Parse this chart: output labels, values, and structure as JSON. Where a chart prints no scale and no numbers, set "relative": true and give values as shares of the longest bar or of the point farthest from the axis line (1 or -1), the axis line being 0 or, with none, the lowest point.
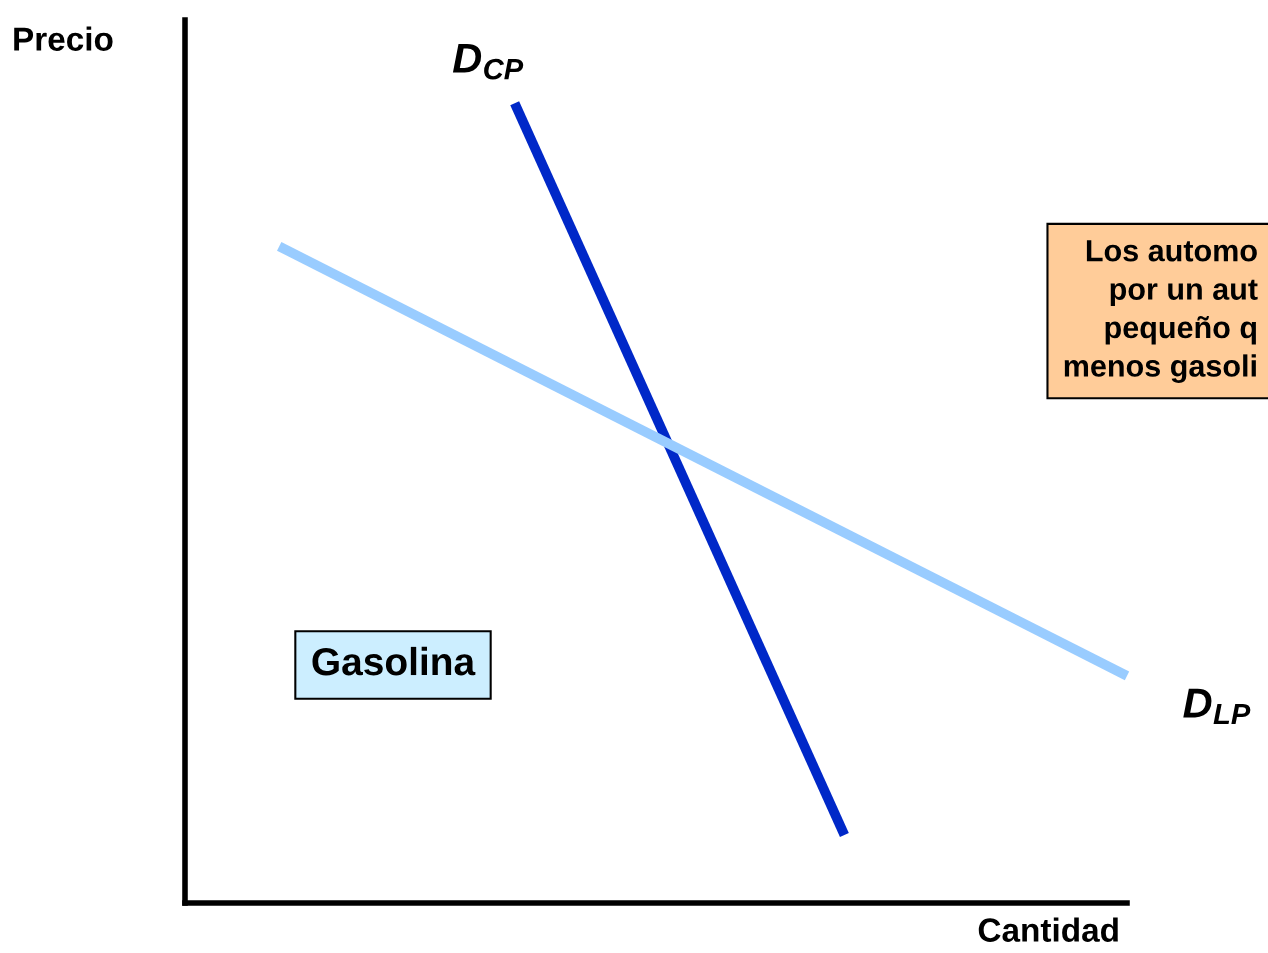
{
  "chart_data": {
    "type": "line",
    "relative": true,
    "xlabel": "Cantidad",
    "ylabel": "Precio",
    "categories": [
      null,
      null,
      null,
      null,
      null,
      null,
      null,
      null,
      null,
      null,
      null,
      null,
      null,
      null,
      null,
      null,
      null,
      null,
      null,
      null,
      null
    ],
    "series": [
      {
        "name": "D$_{CP}$",
        "color": "#0028c8",
        "values": [
          null,
          null,
          null,
          null,
          null,
          null,
          null,
          1,
          null,
          null,
          null,
          null,
          null,
          null,
          0.085,
          null,
          null,
          null,
          null,
          null,
          null
        ]
      },
      {
        "name": "D$_{LP}$",
        "color": "#99ccff",
        "values": [
          null,
          null,
          0.821,
          null,
          null,
          null,
          null,
          null,
          null,
          null,
          null,
          null,
          null,
          null,
          null,
          null,
          null,
          null,
          null,
          null,
          0.284
        ]
      }
    ],
    "annotations": [
      "Gasolina",
      "Los automo\npor un aut\npequeño q\nmenos gasoli"
    ]
  }
}
